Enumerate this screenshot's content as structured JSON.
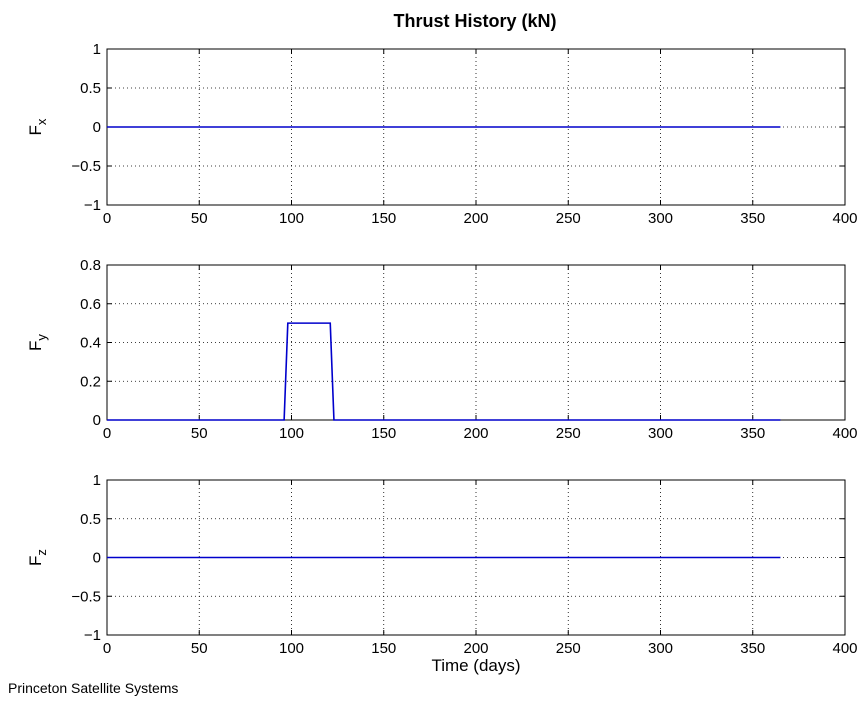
{
  "figure": {
    "title": "Thrust History (kN)",
    "footer": "Princeton Satellite Systems"
  },
  "chart_data": [
    {
      "type": "line",
      "title": "Thrust History (kN)",
      "xlabel": "",
      "ylabel": "F_x",
      "xlim": [
        0,
        400
      ],
      "ylim": [
        -1,
        1
      ],
      "xticks": [
        0,
        50,
        100,
        150,
        200,
        250,
        300,
        350,
        400
      ],
      "yticks": [
        -1,
        -0.5,
        0,
        0.5,
        1
      ],
      "ytick_labels": [
        "−1",
        "−0.5",
        "0",
        "0.5",
        "1"
      ],
      "grid": true,
      "color": "#0000cc",
      "series": [
        {
          "x": [
            0,
            365
          ],
          "y": [
            0,
            0
          ]
        }
      ]
    },
    {
      "type": "line",
      "xlabel": "",
      "ylabel": "F_y",
      "xlim": [
        0,
        400
      ],
      "ylim": [
        0,
        0.8
      ],
      "xticks": [
        0,
        50,
        100,
        150,
        200,
        250,
        300,
        350,
        400
      ],
      "yticks": [
        0,
        0.2,
        0.4,
        0.6,
        0.8
      ],
      "ytick_labels": [
        "0",
        "0.2",
        "0.4",
        "0.6",
        "0.8"
      ],
      "grid": true,
      "color": "#0000cc",
      "series": [
        {
          "x": [
            0,
            96,
            98,
            121,
            123,
            365
          ],
          "y": [
            0,
            0,
            0.5,
            0.5,
            0,
            0
          ]
        }
      ]
    },
    {
      "type": "line",
      "xlabel": "Time (days)",
      "ylabel": "F_z",
      "xlim": [
        0,
        400
      ],
      "ylim": [
        -1,
        1
      ],
      "xticks": [
        0,
        50,
        100,
        150,
        200,
        250,
        300,
        350,
        400
      ],
      "yticks": [
        -1,
        -0.5,
        0,
        0.5,
        1
      ],
      "ytick_labels": [
        "−1",
        "−0.5",
        "0",
        "0.5",
        "1"
      ],
      "grid": true,
      "color": "#0000cc",
      "series": [
        {
          "x": [
            0,
            365
          ],
          "y": [
            0,
            0
          ]
        }
      ]
    }
  ]
}
